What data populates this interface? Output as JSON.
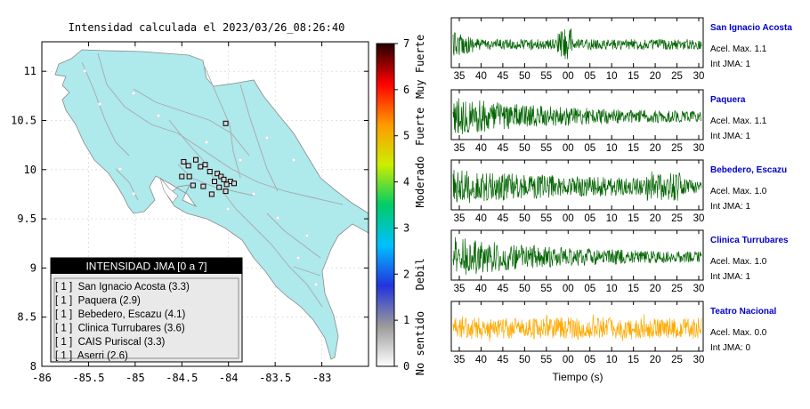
{
  "map": {
    "title": "Intensidad calculada el 2023/03/26_08:26:40",
    "x_ticks": [
      "-86",
      "-85.5",
      "-85",
      "-84.5",
      "-84",
      "-83.5",
      "-83"
    ],
    "x_tick_values": [
      -86,
      -85.5,
      -85,
      -84.5,
      -84,
      -83.5,
      -83
    ],
    "y_ticks": [
      "11",
      "10.5",
      "10",
      "9.5",
      "9",
      "8.5",
      "8"
    ],
    "y_tick_values": [
      11,
      10.5,
      10,
      9.5,
      9,
      8.5,
      8
    ],
    "xlim": [
      -86,
      -82.5
    ],
    "ylim": [
      8,
      11.3
    ],
    "land_color": "#aee9ec",
    "station_color": "#000000"
  },
  "colorbar": {
    "ticks": [
      "0",
      "1",
      "2",
      "3",
      "4",
      "5",
      "6",
      "7"
    ],
    "tick_values": [
      0,
      1,
      2,
      3,
      4,
      5,
      6,
      7
    ],
    "range": [
      0,
      7
    ],
    "labels": [
      "No sentido",
      "Debil",
      "Moderado",
      "Fuerte",
      "Muy Fuerte"
    ],
    "stops": [
      "#ffffff",
      "#9a9a9a",
      "#2233dd",
      "#00bfff",
      "#00cc66",
      "#ccee00",
      "#ff9900",
      "#ff0000",
      "#220000"
    ]
  },
  "legend": {
    "title": "INTENSIDAD JMA [0 a 7]",
    "items": [
      "[ 1 ]  San Ignacio Acosta (3.3)",
      "[ 1 ]  Paquera (2.9)",
      "[ 1 ]  Bebedero, Escazu (4.1)",
      "[ 1 ]  Clinica Turrubares (3.6)",
      "[ 1 ]  CAIS Puriscal (3.3)",
      "[ 1 ]  Aserri (2.6)"
    ]
  },
  "waveforms": {
    "x_ticks": [
      "35",
      "40",
      "45",
      "50",
      "55",
      "00",
      "05",
      "10",
      "15",
      "20",
      "25",
      "30"
    ],
    "xlabel": "Tiempo (s)",
    "stations": [
      {
        "name": "San Ignacio Acosta",
        "accel": "Acel. Max. 1.1",
        "jma": "Int JMA: 1",
        "color": "#006400"
      },
      {
        "name": "Paquera",
        "accel": "Acel. Max. 1.1",
        "jma": "Int JMA: 1",
        "color": "#006400"
      },
      {
        "name": "Bebedero, Escazu",
        "accel": "Acel. Max. 1.0",
        "jma": "Int JMA: 1",
        "color": "#006400"
      },
      {
        "name": "Clinica Turrubares",
        "accel": "Acel. Max. 1.0",
        "jma": "Int JMA: 1",
        "color": "#006400"
      },
      {
        "name": "Teatro Nacional",
        "accel": "Acel. Max. 0.0",
        "jma": "Int JMA: 0",
        "color": "#ffaa00"
      }
    ],
    "name_color": "#0000cc"
  },
  "chart_data": [
    {
      "type": "scatter",
      "title": "Intensidad calculada el 2023/03/26_08:26:40",
      "xlim": [
        -86,
        -82.5
      ],
      "ylim": [
        8,
        11.3
      ],
      "x_ticks": [
        -86,
        -85.5,
        -85,
        -84.5,
        -84,
        -83.5,
        -83
      ],
      "y_ticks": [
        8,
        8.5,
        9,
        9.5,
        10,
        10.5,
        11
      ],
      "legend_title": "INTENSIDAD JMA [0 a 7]",
      "legend_entries": [
        "San Ignacio Acosta (3.3)",
        "Paquera (2.9)",
        "Bebedero, Escazu (4.1)",
        "Clinica Turrubares (3.6)",
        "CAIS Puriscal (3.3)",
        "Aserri (2.6)"
      ],
      "stations": [
        {
          "lon": -84.03,
          "lat": 10.47
        },
        {
          "lon": -84.48,
          "lat": 10.08
        },
        {
          "lon": -84.43,
          "lat": 10.04
        },
        {
          "lon": -84.35,
          "lat": 10.1
        },
        {
          "lon": -84.3,
          "lat": 10.03
        },
        {
          "lon": -84.25,
          "lat": 10.05
        },
        {
          "lon": -84.2,
          "lat": 9.98
        },
        {
          "lon": -84.12,
          "lat": 9.96
        },
        {
          "lon": -84.08,
          "lat": 9.93
        },
        {
          "lon": -84.05,
          "lat": 9.9
        },
        {
          "lon": -83.98,
          "lat": 9.88
        },
        {
          "lon": -83.94,
          "lat": 9.86
        },
        {
          "lon": -84.02,
          "lat": 9.85
        },
        {
          "lon": -84.1,
          "lat": 9.82
        },
        {
          "lon": -84.15,
          "lat": 9.88
        },
        {
          "lon": -84.27,
          "lat": 9.83
        },
        {
          "lon": -84.38,
          "lat": 9.84
        },
        {
          "lon": -84.5,
          "lat": 9.93
        },
        {
          "lon": -84.42,
          "lat": 9.93
        },
        {
          "lon": -84.18,
          "lat": 9.75
        },
        {
          "lon": -84.03,
          "lat": 9.78
        }
      ]
    },
    {
      "type": "heatmap",
      "title": "",
      "range": [
        0,
        7
      ],
      "ticks": [
        0,
        1,
        2,
        3,
        4,
        5,
        6,
        7
      ],
      "labels": [
        "No sentido",
        "Debil",
        "Moderado",
        "Fuerte",
        "Muy Fuerte"
      ]
    },
    {
      "type": "line",
      "xlabel": "Tiempo (s)",
      "x_ticks": [
        "35",
        "40",
        "45",
        "50",
        "55",
        "00",
        "05",
        "10",
        "15",
        "20",
        "25",
        "30"
      ],
      "series": [
        {
          "name": "San Ignacio Acosta",
          "peak_accel": 1.1,
          "jma": 1
        },
        {
          "name": "Paquera",
          "peak_accel": 1.1,
          "jma": 1
        },
        {
          "name": "Bebedero, Escazu",
          "peak_accel": 1.0,
          "jma": 1
        },
        {
          "name": "Clinica Turrubares",
          "peak_accel": 1.0,
          "jma": 1
        },
        {
          "name": "Teatro Nacional",
          "peak_accel": 0.0,
          "jma": 0
        }
      ]
    }
  ]
}
